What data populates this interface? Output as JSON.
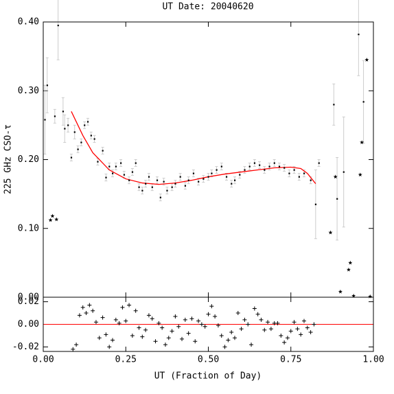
{
  "chart_data": [
    {
      "type": "scatter",
      "title": "UT Date: 20040620",
      "y_label": "225 GHz CSO-τ",
      "xlim": [
        0,
        1
      ],
      "ylim": [
        0,
        0.4
      ],
      "xticks": [
        0,
        0.25,
        0.5,
        0.75,
        1
      ],
      "yticks": [
        {
          "value": 0,
          "label": "0.00"
        },
        {
          "value": 0.1,
          "label": "0.10"
        },
        {
          "value": 0.2,
          "label": "0.20"
        },
        {
          "value": 0.3,
          "label": "0.30"
        },
        {
          "value": 0.4,
          "label": "0.40"
        }
      ],
      "series": [
        {
          "kind": "errorbar",
          "color": "#000000",
          "error_color": "#cccccc",
          "x": [
            0.005,
            0.012,
            0.035,
            0.045,
            0.06,
            0.065,
            0.075,
            0.085,
            0.095,
            0.105,
            0.115,
            0.125,
            0.135,
            0.145,
            0.155,
            0.165,
            0.18,
            0.19,
            0.2,
            0.21,
            0.22,
            0.235,
            0.245,
            0.26,
            0.27,
            0.28,
            0.29,
            0.3,
            0.31,
            0.32,
            0.33,
            0.345,
            0.355,
            0.365,
            0.375,
            0.39,
            0.4,
            0.415,
            0.43,
            0.44,
            0.455,
            0.47,
            0.485,
            0.5,
            0.51,
            0.525,
            0.54,
            0.555,
            0.57,
            0.58,
            0.595,
            0.61,
            0.625,
            0.64,
            0.655,
            0.67,
            0.685,
            0.7,
            0.715,
            0.73,
            0.745,
            0.76,
            0.775,
            0.79,
            0.81,
            0.825,
            0.835,
            0.88,
            0.89,
            0.91,
            0.955,
            0.97
          ],
          "values": [
            0.258,
            0.308,
            0.263,
            0.395,
            0.27,
            0.245,
            0.25,
            0.203,
            0.24,
            0.215,
            0.225,
            0.25,
            0.255,
            0.235,
            0.23,
            0.197,
            0.213,
            0.174,
            0.19,
            0.18,
            0.19,
            0.195,
            0.178,
            0.17,
            0.182,
            0.195,
            0.16,
            0.155,
            0.165,
            0.175,
            0.16,
            0.17,
            0.145,
            0.168,
            0.155,
            0.16,
            0.165,
            0.175,
            0.162,
            0.17,
            0.18,
            0.168,
            0.172,
            0.175,
            0.18,
            0.185,
            0.19,
            0.175,
            0.165,
            0.17,
            0.178,
            0.185,
            0.19,
            0.195,
            0.192,
            0.185,
            0.19,
            0.195,
            0.19,
            0.188,
            0.18,
            0.185,
            0.175,
            0.18,
            0.17,
            0.135,
            0.195,
            0.28,
            0.143,
            0.182,
            0.382,
            0.284
          ],
          "errors": [
            0.05,
            0.04,
            0.01,
            0.05,
            0.02,
            0.02,
            0.01,
            0.005,
            0.01,
            0.005,
            0.005,
            0.005,
            0.005,
            0.005,
            0.005,
            0.005,
            0.005,
            0.005,
            0.005,
            0.005,
            0.005,
            0.005,
            0.005,
            0.005,
            0.005,
            0.005,
            0.005,
            0.005,
            0.005,
            0.005,
            0.005,
            0.005,
            0.005,
            0.005,
            0.005,
            0.005,
            0.005,
            0.005,
            0.005,
            0.005,
            0.005,
            0.005,
            0.005,
            0.005,
            0.005,
            0.005,
            0.005,
            0.005,
            0.005,
            0.005,
            0.005,
            0.005,
            0.005,
            0.005,
            0.005,
            0.005,
            0.005,
            0.005,
            0.005,
            0.005,
            0.005,
            0.005,
            0.005,
            0.005,
            0.005,
            0.05,
            0.005,
            0.03,
            0.06,
            0.08,
            0.06,
            0.06
          ]
        },
        {
          "kind": "star",
          "color": "#000000",
          "x": [
            0.022,
            0.028,
            0.04,
            0.87,
            0.885,
            0.9,
            0.925,
            0.93,
            0.94,
            0.96,
            0.965,
            0.98,
            0.99
          ],
          "values": [
            0.112,
            0.118,
            0.113,
            0.094,
            0.175,
            0.008,
            0.04,
            0.05,
            0.002,
            0.178,
            0.225,
            0.345,
            0.001
          ]
        },
        {
          "kind": "line",
          "color": "#ff0000",
          "x": [
            0.085,
            0.12,
            0.15,
            0.2,
            0.25,
            0.3,
            0.35,
            0.4,
            0.45,
            0.5,
            0.55,
            0.6,
            0.65,
            0.7,
            0.75,
            0.78,
            0.8,
            0.825
          ],
          "values": [
            0.27,
            0.235,
            0.21,
            0.185,
            0.172,
            0.166,
            0.164,
            0.166,
            0.17,
            0.175,
            0.179,
            0.182,
            0.185,
            0.188,
            0.189,
            0.187,
            0.18,
            0.165
          ]
        }
      ]
    },
    {
      "type": "scatter",
      "x_label": "UT (Fraction of Day)",
      "xlim": [
        0,
        1
      ],
      "ylim": [
        -0.024,
        0.024
      ],
      "xticks": [
        {
          "value": 0,
          "label": "0.00"
        },
        {
          "value": 0.25,
          "label": "0.25"
        },
        {
          "value": 0.5,
          "label": "0.50"
        },
        {
          "value": 0.75,
          "label": "0.75"
        },
        {
          "value": 1,
          "label": "1.00"
        }
      ],
      "yticks": [
        {
          "value": -0.02,
          "label": "-0.02"
        },
        {
          "value": 0,
          "label": "0.00"
        },
        {
          "value": 0.02,
          "label": "0.02"
        }
      ],
      "reference_line": 0,
      "reference_color": "#ff0000",
      "series": [
        {
          "kind": "plus",
          "color": "#000000",
          "x": [
            0.09,
            0.1,
            0.11,
            0.12,
            0.13,
            0.14,
            0.15,
            0.16,
            0.17,
            0.18,
            0.19,
            0.2,
            0.21,
            0.22,
            0.23,
            0.24,
            0.25,
            0.26,
            0.27,
            0.28,
            0.29,
            0.3,
            0.31,
            0.32,
            0.33,
            0.34,
            0.35,
            0.36,
            0.37,
            0.38,
            0.39,
            0.4,
            0.41,
            0.42,
            0.43,
            0.44,
            0.45,
            0.46,
            0.47,
            0.48,
            0.49,
            0.5,
            0.51,
            0.52,
            0.53,
            0.54,
            0.55,
            0.56,
            0.57,
            0.58,
            0.59,
            0.6,
            0.61,
            0.62,
            0.63,
            0.64,
            0.65,
            0.66,
            0.67,
            0.68,
            0.69,
            0.7,
            0.71,
            0.72,
            0.73,
            0.74,
            0.75,
            0.76,
            0.77,
            0.78,
            0.79,
            0.8,
            0.81,
            0.82
          ],
          "values": [
            -0.022,
            -0.018,
            0.008,
            0.015,
            0.01,
            0.017,
            0.012,
            0.002,
            -0.012,
            0.006,
            -0.009,
            -0.02,
            -0.014,
            0.004,
            0.001,
            0.015,
            0.003,
            0.017,
            -0.01,
            0.012,
            -0.003,
            -0.011,
            -0.005,
            0.008,
            0.005,
            -0.015,
            0.001,
            -0.003,
            -0.018,
            -0.012,
            -0.006,
            0.007,
            -0.002,
            -0.013,
            0.004,
            -0.008,
            0.005,
            -0.015,
            0.003,
            0.0,
            -0.002,
            0.009,
            0.016,
            0.007,
            -0.001,
            -0.01,
            -0.02,
            -0.014,
            -0.007,
            -0.012,
            0.01,
            -0.004,
            0.004,
            0.0,
            -0.018,
            0.014,
            0.009,
            0.004,
            -0.005,
            0.002,
            -0.004,
            0.001,
            0.001,
            -0.01,
            -0.016,
            -0.012,
            -0.006,
            0.002,
            -0.004,
            -0.009,
            0.003,
            -0.003,
            -0.007,
            0.0
          ]
        }
      ]
    }
  ]
}
